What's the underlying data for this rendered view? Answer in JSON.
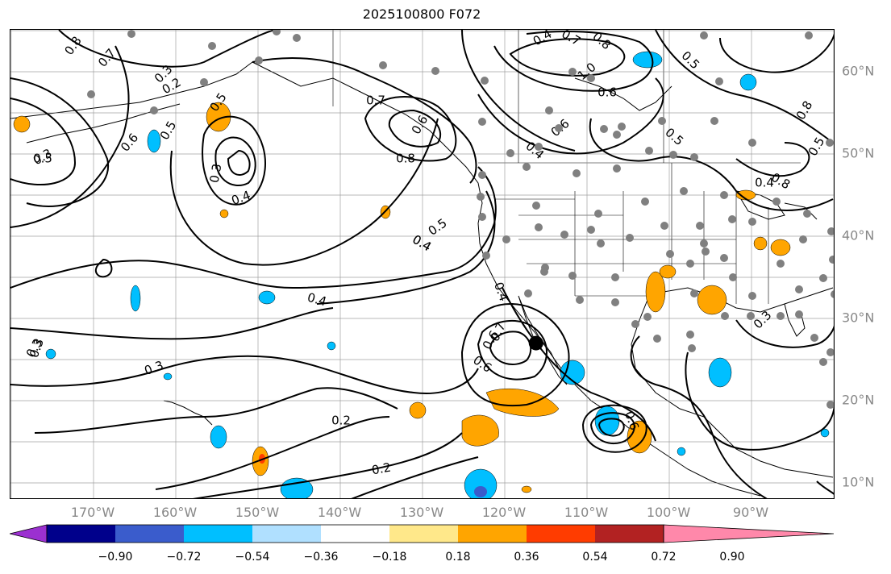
{
  "title": "2025100800 F072",
  "lon_labels": [
    {
      "text": "170°W",
      "lon": -170
    },
    {
      "text": "160°W",
      "lon": -160
    },
    {
      "text": "150°W",
      "lon": -150
    },
    {
      "text": "140°W",
      "lon": -140
    },
    {
      "text": "130°W",
      "lon": -130
    },
    {
      "text": "120°W",
      "lon": -120
    },
    {
      "text": "110°W",
      "lon": -110
    },
    {
      "text": "100°W",
      "lon": -100
    },
    {
      "text": "90°W",
      "lon": -90
    }
  ],
  "lat_labels": [
    {
      "text": "60°N",
      "lat": 60
    },
    {
      "text": "50°N",
      "lat": 50
    },
    {
      "text": "40°N",
      "lat": 40
    },
    {
      "text": "30°N",
      "lat": 30
    },
    {
      "text": "20°N",
      "lat": 20
    },
    {
      "text": "10°N",
      "lat": 10
    }
  ],
  "colorbar": {
    "colors": [
      "#9b30d0",
      "#00008b",
      "#3a5ccc",
      "#00bfff",
      "#b0e0ff",
      "#ffffff",
      "#ffe88a",
      "#ffa500",
      "#ff3c00",
      "#b22222",
      "#ff88aa"
    ],
    "tick_labels": [
      "−0.90",
      "−0.72",
      "−0.54",
      "−0.36",
      "−0.18",
      "0.18",
      "0.36",
      "0.54",
      "0.72",
      "0.90"
    ]
  },
  "contour_labels": [
    "0.8",
    "0.7",
    "0.3",
    "0.2",
    "0.5",
    "0.3",
    "0.8",
    "0.7",
    "1.0",
    "0.6",
    "0.5",
    "0.4",
    "0.7",
    "0.6",
    "0.8",
    "0.6",
    "0.5",
    "0.3",
    "0.4",
    "0.5",
    "0.4",
    "0.4",
    "0.6",
    "0.6",
    "0.4",
    "0.5",
    "0.8",
    "0.3",
    "0.5",
    "0.4",
    "0.3",
    "0.3",
    "0.7",
    "0.6",
    "0.4",
    "0.2",
    "0.2",
    "0.6",
    "0.5",
    "0.3",
    "0.8",
    "0.4"
  ],
  "marker": {
    "lon": -116.2,
    "lat": 27.0
  }
}
